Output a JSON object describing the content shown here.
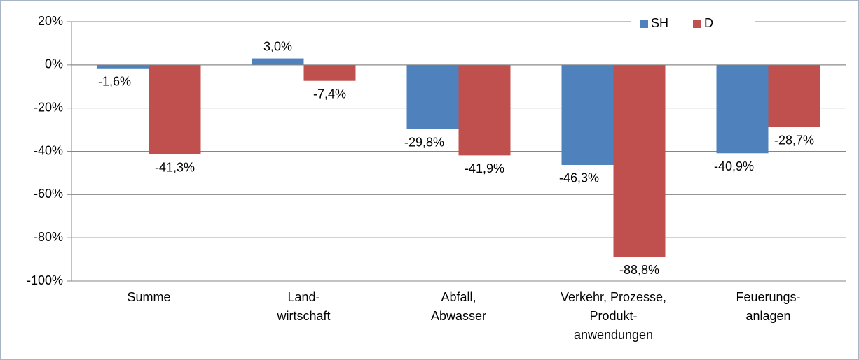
{
  "chart_data": {
    "type": "bar",
    "categories": [
      "Summe",
      "Land-\nwirtschaft",
      "Abfall,\nAbwasser",
      "Verkehr, Prozesse,\nProdukt-\nanwendungen",
      "Feuerungs-\nanlagen"
    ],
    "series": [
      {
        "name": "SH",
        "color": "#4f81bd",
        "values": [
          -1.6,
          3.0,
          -29.8,
          -46.3,
          -40.9
        ],
        "value_labels": [
          "-1,6%",
          "3,0%",
          "-29,8%",
          "-46,3%",
          "-40,9%"
        ]
      },
      {
        "name": "D",
        "color": "#c0504d",
        "values": [
          -41.3,
          -7.4,
          -41.9,
          -88.8,
          -28.7
        ],
        "value_labels": [
          "-41,3%",
          "-7,4%",
          "-41,9%",
          "-88,8%",
          "-28,7%"
        ]
      }
    ],
    "ylim": [
      -100,
      20
    ],
    "yticks": [
      {
        "value": -100,
        "label": "-100%"
      },
      {
        "value": -80,
        "label": "-80%"
      },
      {
        "value": -60,
        "label": "-60%"
      },
      {
        "value": -40,
        "label": "-40%"
      },
      {
        "value": -20,
        "label": "-20%"
      },
      {
        "value": 0,
        "label": "0%"
      },
      {
        "value": 20,
        "label": "20%"
      }
    ],
    "grid": true,
    "legend": "top-right"
  }
}
